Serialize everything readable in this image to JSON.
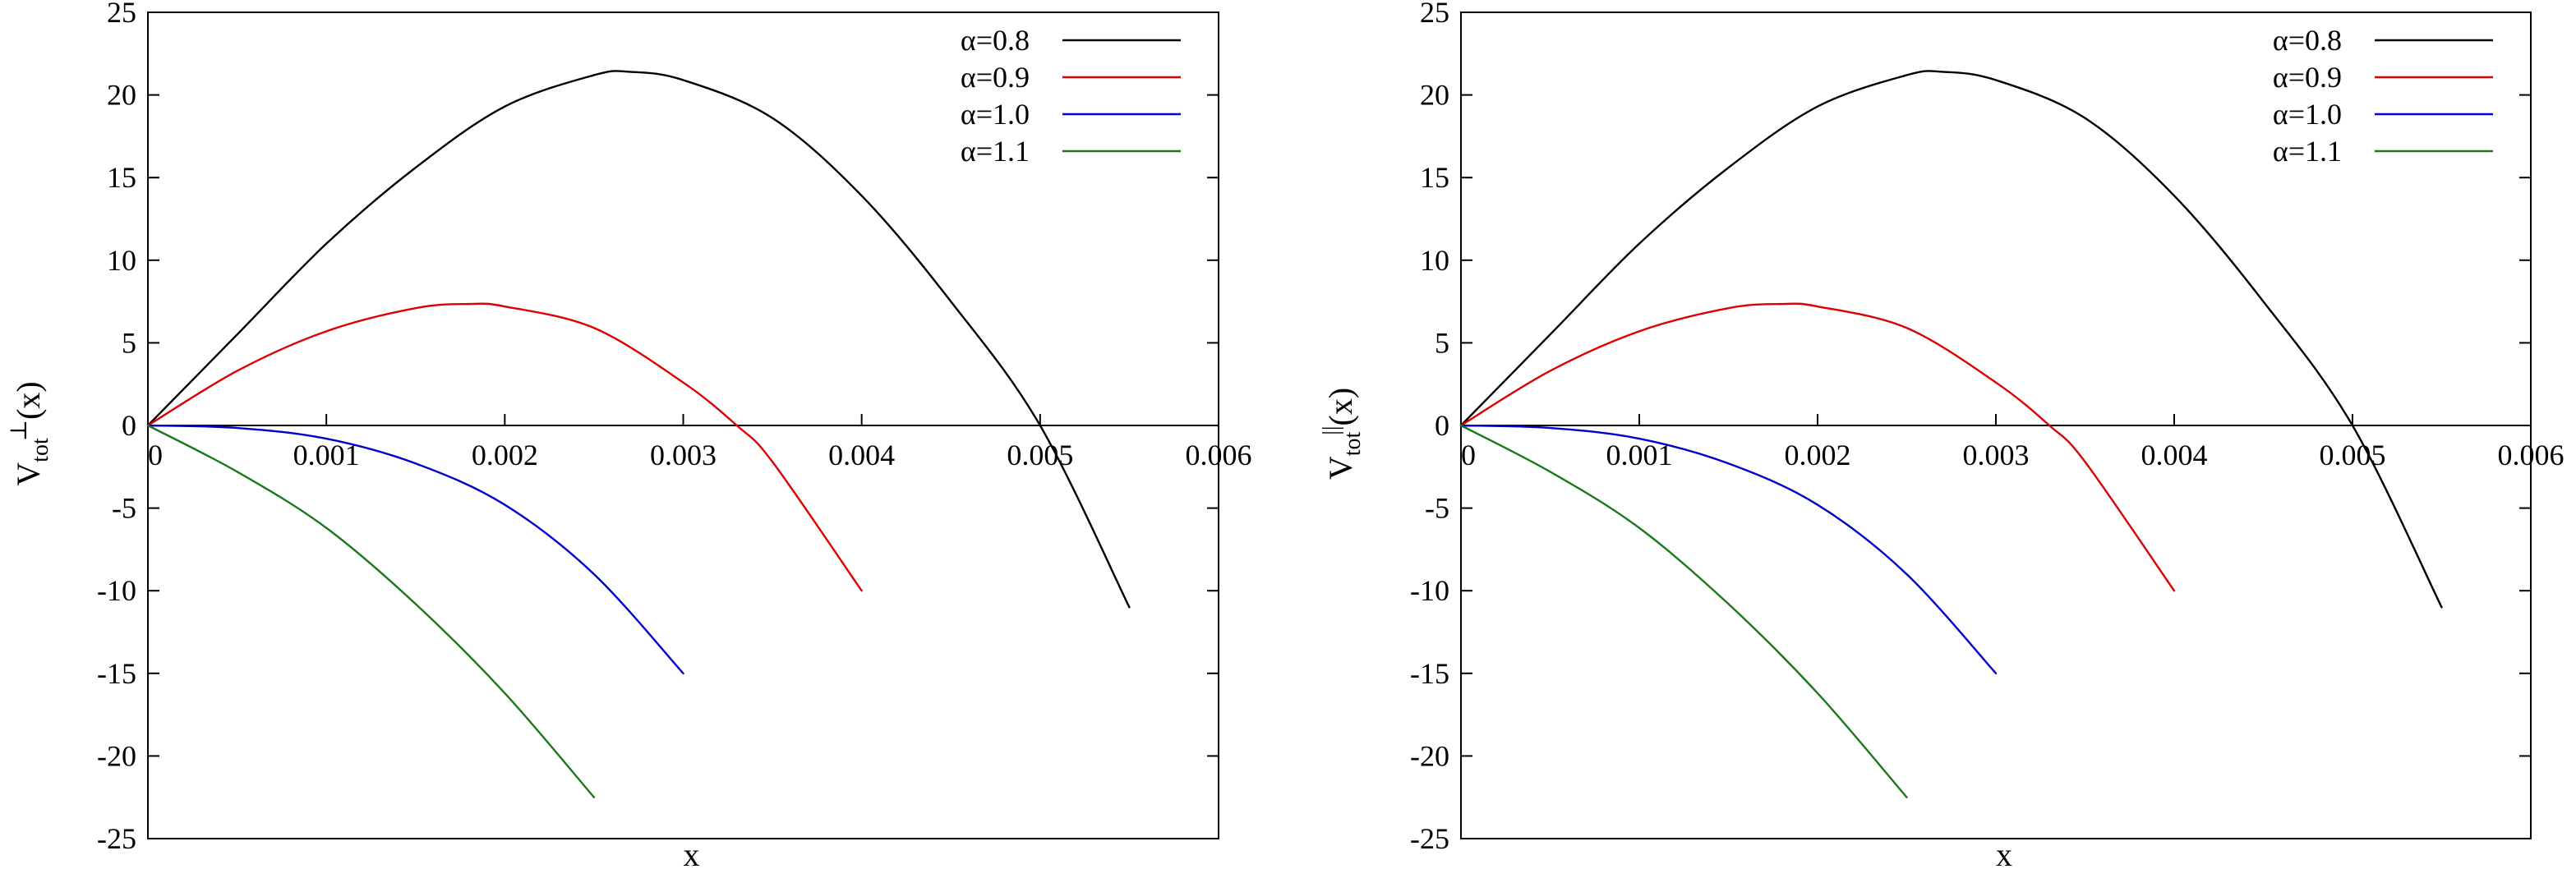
{
  "chart_data": [
    {
      "type": "line",
      "xlabel": "x",
      "ylabel": {
        "base": "V",
        "sub": "tot",
        "sup": "⊥",
        "suffix": "(x)"
      },
      "xlim": [
        0,
        0.006
      ],
      "ylim": [
        -25,
        25
      ],
      "xticks": [
        0,
        0.001,
        0.002,
        0.003,
        0.004,
        0.005,
        0.006
      ],
      "xtick_labels": [
        "0",
        "0.001",
        "0.002",
        "0.003",
        "0.004",
        "0.005",
        "0.006"
      ],
      "yticks": [
        -25,
        -20,
        -15,
        -10,
        -5,
        0,
        5,
        10,
        15,
        20,
        25
      ],
      "ytick_labels": [
        "-25",
        "-20",
        "-15",
        "-10",
        "-5",
        "0",
        "5",
        "10",
        "15",
        "20",
        "25"
      ],
      "grid": false,
      "legend_position": "top-right",
      "series": [
        {
          "name": "α=0.8",
          "color": "#000000",
          "x": [
            0,
            0.0005,
            0.001,
            0.0015,
            0.002,
            0.0025,
            0.0027,
            0.003,
            0.0035,
            0.004,
            0.0045,
            0.005,
            0.0055
          ],
          "y": [
            0,
            5.5,
            11.0,
            15.6,
            19.3,
            21.2,
            21.4,
            20.9,
            18.6,
            13.9,
            7.5,
            0.0,
            -11.0
          ]
        },
        {
          "name": "α=0.9",
          "color": "#dd0000",
          "x": [
            0,
            0.0005,
            0.001,
            0.0015,
            0.0018,
            0.002,
            0.0025,
            0.003,
            0.0033,
            0.0035,
            0.004
          ],
          "y": [
            0,
            3.3,
            5.7,
            7.1,
            7.35,
            7.2,
            5.9,
            2.6,
            0.0,
            -2.2,
            -10.0
          ]
        },
        {
          "name": "α=1.0",
          "color": "#0000cc",
          "x": [
            0,
            0.0005,
            0.001,
            0.0015,
            0.002,
            0.0025,
            0.003
          ],
          "y": [
            0,
            -0.15,
            -0.8,
            -2.3,
            -4.8,
            -9.0,
            -15.0
          ]
        },
        {
          "name": "α=1.1",
          "color": "#1a7a1a",
          "x": [
            0,
            0.0005,
            0.001,
            0.0015,
            0.002,
            0.0025
          ],
          "y": [
            0,
            -2.8,
            -6.2,
            -10.8,
            -16.2,
            -22.5
          ]
        }
      ]
    },
    {
      "type": "line",
      "xlabel": "x",
      "ylabel": {
        "base": "V",
        "sub": "tot",
        "sup": "||",
        "suffix": "(x)"
      },
      "xlim": [
        0,
        0.006
      ],
      "ylim": [
        -25,
        25
      ],
      "xticks": [
        0,
        0.001,
        0.002,
        0.003,
        0.004,
        0.005,
        0.006
      ],
      "xtick_labels": [
        "0",
        "0.001",
        "0.002",
        "0.003",
        "0.004",
        "0.005",
        "0.006"
      ],
      "yticks": [
        -25,
        -20,
        -15,
        -10,
        -5,
        0,
        5,
        10,
        15,
        20,
        25
      ],
      "ytick_labels": [
        "-25",
        "-20",
        "-15",
        "-10",
        "-5",
        "0",
        "5",
        "10",
        "15",
        "20",
        "25"
      ],
      "grid": false,
      "legend_position": "top-right",
      "series": [
        {
          "name": "α=0.8",
          "color": "#000000",
          "x": [
            0,
            0.0005,
            0.001,
            0.0015,
            0.002,
            0.0025,
            0.0027,
            0.003,
            0.0035,
            0.004,
            0.0045,
            0.005,
            0.0055
          ],
          "y": [
            0,
            5.5,
            11.0,
            15.6,
            19.3,
            21.2,
            21.4,
            20.9,
            18.6,
            13.9,
            7.5,
            0.0,
            -11.0
          ]
        },
        {
          "name": "α=0.9",
          "color": "#dd0000",
          "x": [
            0,
            0.0005,
            0.001,
            0.0015,
            0.0018,
            0.002,
            0.0025,
            0.003,
            0.0033,
            0.0035,
            0.004
          ],
          "y": [
            0,
            3.3,
            5.7,
            7.1,
            7.35,
            7.2,
            5.9,
            2.6,
            0.0,
            -2.2,
            -10.0
          ]
        },
        {
          "name": "α=1.0",
          "color": "#0000cc",
          "x": [
            0,
            0.0005,
            0.001,
            0.0015,
            0.002,
            0.0025,
            0.003
          ],
          "y": [
            0,
            -0.15,
            -0.8,
            -2.3,
            -4.8,
            -9.0,
            -15.0
          ]
        },
        {
          "name": "α=1.1",
          "color": "#1a7a1a",
          "x": [
            0,
            0.0005,
            0.001,
            0.0015,
            0.002,
            0.0025
          ],
          "y": [
            0,
            -2.8,
            -6.2,
            -10.8,
            -16.2,
            -22.5
          ]
        }
      ]
    }
  ]
}
